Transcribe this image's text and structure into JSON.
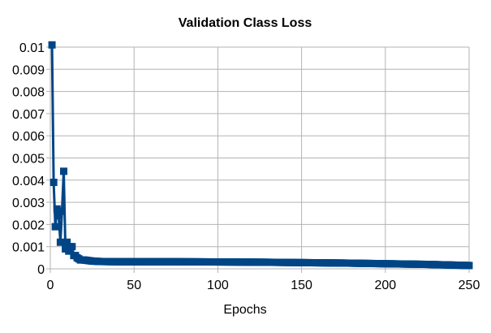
{
  "chart_data": {
    "type": "line",
    "title": "Validation Class Loss",
    "xlabel": "Epochs",
    "ylabel": "",
    "xlim": [
      0,
      250
    ],
    "ylim": [
      0,
      0.01
    ],
    "x_ticks": [
      "0",
      "50",
      "100",
      "150",
      "200",
      "250"
    ],
    "y_ticks": [
      "0",
      "0.001",
      "0.002",
      "0.003",
      "0.004",
      "0.005",
      "0.006",
      "0.007",
      "0.008",
      "0.009",
      "0.01"
    ],
    "grid": true,
    "legend": "none",
    "marker": "square",
    "colors": {
      "series": "#004586",
      "grid": "#b3b3b3",
      "axis": "#b3b3b3"
    },
    "series": [
      {
        "x": [
          1,
          2,
          3,
          4,
          5,
          6,
          7,
          8,
          9,
          10,
          11,
          12,
          13,
          14,
          15,
          16,
          17,
          18,
          20,
          22,
          25,
          30,
          40,
          50,
          75,
          100,
          125,
          150,
          175,
          200,
          225,
          250
        ],
        "values": [
          0.0101,
          0.0039,
          0.0019,
          0.0027,
          0.0024,
          0.0012,
          0.0026,
          0.0044,
          0.0009,
          0.0012,
          0.0008,
          0.001,
          0.001,
          0.0006,
          0.0006,
          0.0005,
          0.00045,
          0.0004,
          0.0004,
          0.00038,
          0.00035,
          0.00033,
          0.00032,
          0.00032,
          0.00032,
          0.00031,
          0.0003,
          0.00028,
          0.00026,
          0.00023,
          0.0002,
          0.00015
        ]
      }
    ]
  }
}
